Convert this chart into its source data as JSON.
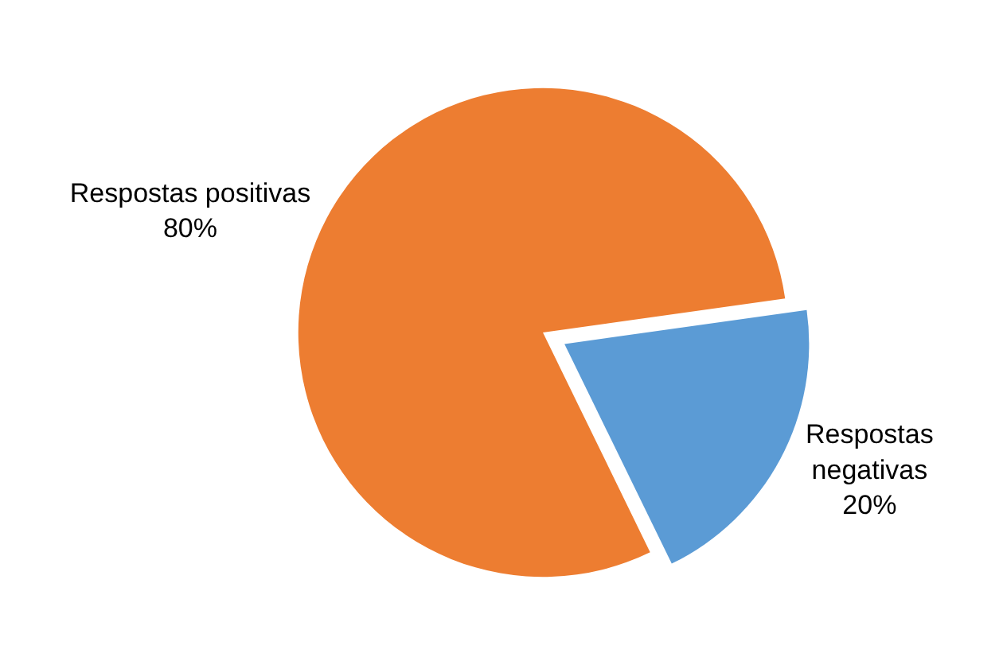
{
  "chart_data": {
    "type": "pie",
    "categories": [
      "Respostas positivas",
      "Respostas negativas"
    ],
    "values": [
      80,
      20
    ],
    "colors": [
      "#ed7d31",
      "#5b9bd5"
    ],
    "value_labels": [
      "80%",
      "20%"
    ],
    "legend": false
  }
}
